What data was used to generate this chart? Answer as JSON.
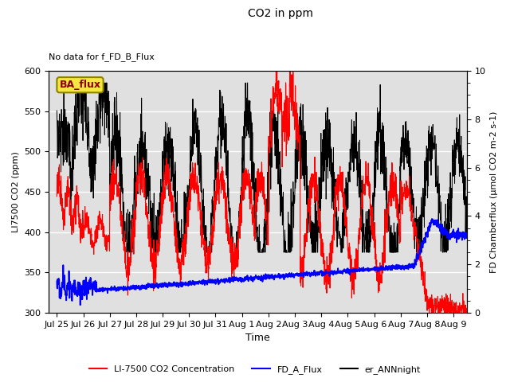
{
  "title": "CO2 in ppm",
  "note": "No data for f_FD_B_Flux",
  "ylabel_left": "LI7500 CO2 (ppm)",
  "ylabel_right": "FD Chamberflux (μmol CO2 m-2 s-1)",
  "xlabel": "Time",
  "ylim_left": [
    300,
    600
  ],
  "ylim_right": [
    0.0,
    10.0
  ],
  "background_color": "#ffffff",
  "plot_bg_color": "#e0e0e0",
  "ba_flux_label": "BA_flux",
  "legend_entries": [
    "LI-7500 CO2 Concentration",
    "FD_A_Flux",
    "er_ANNnight"
  ],
  "tick_labels": [
    "Jul 25",
    "Jul 26",
    "Jul 27",
    "Jul 28",
    "Jul 29",
    "Jul 30",
    "Jul 31",
    "Aug 1",
    "Aug 2",
    "Aug 3",
    "Aug 4",
    "Aug 5",
    "Aug 6",
    "Aug 7",
    "Aug 8",
    "Aug 9"
  ],
  "tick_positions": [
    0,
    1,
    2,
    3,
    4,
    5,
    6,
    7,
    8,
    9,
    10,
    11,
    12,
    13,
    14,
    15
  ],
  "x_lim": [
    -0.3,
    15.5
  ]
}
